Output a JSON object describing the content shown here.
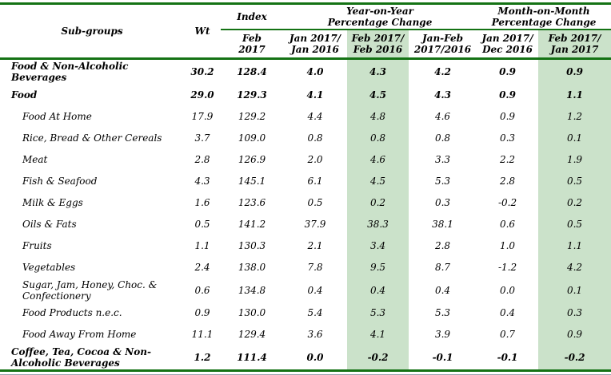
{
  "table": {
    "header": {
      "subgroups": "Sub-groups",
      "wt": "Wt",
      "index_group": "Index",
      "yoy_group": "Year-on-Year\nPercentage Change",
      "mom_group": "Month-on-Month\nPercentage Change",
      "columns": [
        "Feb\n2017",
        "Jan 2017/\nJan 2016",
        "Feb 2017/\nFeb 2016",
        "Jan-Feb\n2017/2016",
        "Jan 2017/\nDec 2016",
        "Feb 2017/\nJan 2017"
      ]
    },
    "rows": [
      {
        "name": "Food & Non-Alcoholic\nBeverages",
        "wt": "30.2",
        "index": "128.4",
        "changes": [
          "4.0",
          "4.3",
          "4.2",
          "0.9",
          "0.9"
        ],
        "bold": true,
        "indent": false
      },
      {
        "name": "Food",
        "wt": "29.0",
        "index": "129.3",
        "changes": [
          "4.1",
          "4.5",
          "4.3",
          "0.9",
          "1.1"
        ],
        "bold": true,
        "indent": false
      },
      {
        "name": "Food At Home",
        "wt": "17.9",
        "index": "129.2",
        "changes": [
          "4.4",
          "4.8",
          "4.6",
          "0.9",
          "1.2"
        ],
        "bold": false,
        "indent": true
      },
      {
        "name": "Rice, Bread & Other Cereals",
        "wt": "3.7",
        "index": "109.0",
        "changes": [
          "0.8",
          "0.8",
          "0.8",
          "0.3",
          "0.1"
        ],
        "bold": false,
        "indent": true
      },
      {
        "name": "Meat",
        "wt": "2.8",
        "index": "126.9",
        "changes": [
          "2.0",
          "4.6",
          "3.3",
          "2.2",
          "1.9"
        ],
        "bold": false,
        "indent": true
      },
      {
        "name": "Fish & Seafood",
        "wt": "4.3",
        "index": "145.1",
        "changes": [
          "6.1",
          "4.5",
          "5.3",
          "2.8",
          "0.5"
        ],
        "bold": false,
        "indent": true
      },
      {
        "name": "Milk & Eggs",
        "wt": "1.6",
        "index": "123.6",
        "changes": [
          "0.5",
          "0.2",
          "0.3",
          "-0.2",
          "0.2"
        ],
        "bold": false,
        "indent": true
      },
      {
        "name": "Oils & Fats",
        "wt": "0.5",
        "index": "141.2",
        "changes": [
          "37.9",
          "38.3",
          "38.1",
          "0.6",
          "0.5"
        ],
        "bold": false,
        "indent": true
      },
      {
        "name": "Fruits",
        "wt": "1.1",
        "index": "130.3",
        "changes": [
          "2.1",
          "3.4",
          "2.8",
          "1.0",
          "1.1"
        ],
        "bold": false,
        "indent": true
      },
      {
        "name": "Vegetables",
        "wt": "2.4",
        "index": "138.0",
        "changes": [
          "7.8",
          "9.5",
          "8.7",
          "-1.2",
          "4.2"
        ],
        "bold": false,
        "indent": true
      },
      {
        "name": "Sugar, Jam, Honey, Choc. &\nConfectionery",
        "wt": "0.6",
        "index": "134.8",
        "changes": [
          "0.4",
          "0.4",
          "0.4",
          "0.0",
          "0.1"
        ],
        "bold": false,
        "indent": true
      },
      {
        "name": "Food Products n.e.c.",
        "wt": "0.9",
        "index": "130.0",
        "changes": [
          "5.4",
          "5.3",
          "5.3",
          "0.4",
          "0.3"
        ],
        "bold": false,
        "indent": true
      },
      {
        "name": "Food Away From Home",
        "wt": "11.1",
        "index": "129.4",
        "changes": [
          "3.6",
          "4.1",
          "3.9",
          "0.7",
          "0.9"
        ],
        "bold": false,
        "indent": true
      },
      {
        "name": "Coffee, Tea, Cocoa & Non-\nAlcoholic Beverages",
        "wt": "1.2",
        "index": "111.4",
        "changes": [
          "0.0",
          "-0.2",
          "-0.1",
          "-0.1",
          "-0.2"
        ],
        "bold": true,
        "indent": false
      }
    ]
  },
  "colors": {
    "line_green": "#147214",
    "shade_green": "#cbe2ca",
    "bottom_rule_gray": "#9aa5ae"
  }
}
